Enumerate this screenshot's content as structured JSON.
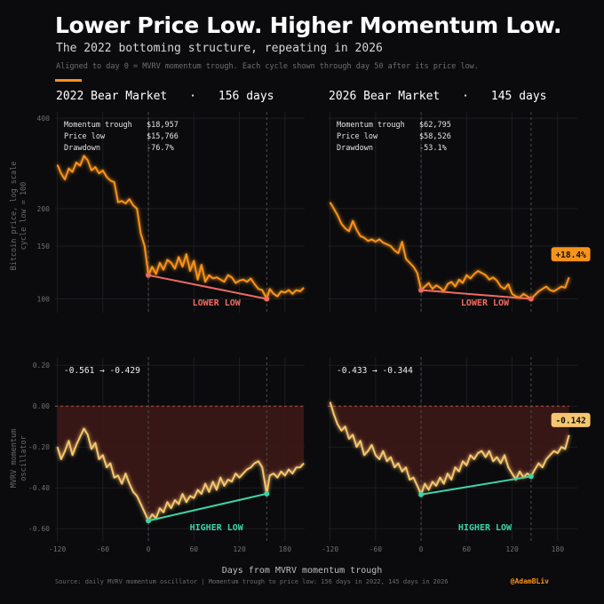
{
  "header": {
    "title": "Lower Price Low. Higher Momentum Low.",
    "subtitle": "The 2022 bottoming structure, repeating in 2026",
    "note": "Aligned to day 0 = MVRV momentum trough. Each cycle shown through day 50 after its price low."
  },
  "axes": {
    "price_ylabel": "Bitcoin price, log scale\ncycle low = 100",
    "osc_ylabel": "MVRV momentum\noscillator",
    "xlabel": "Days from MVRV momentum trough"
  },
  "footer": {
    "source": "Source: daily MVRV momentum oscillator  |  Momentum trough to price low: 156 days in 2022, 145 days in 2026",
    "handle": "@AdamBLiv"
  },
  "colors": {
    "price_line": "#f7931a",
    "osc_line": "#f6c66e",
    "lower_low": "#ef6b61",
    "higher_low": "#3fd2a4",
    "negative_fill": "#3a1816",
    "grid": "#1d1d22"
  },
  "chart_data": [
    {
      "type": "line",
      "panel": "2022 price",
      "title_left": "2022 Bear Market",
      "title_sep": "·",
      "title_right": "156 days",
      "stats": [
        {
          "label": "Momentum trough",
          "value": "$18,957"
        },
        {
          "label": "Price low",
          "value": "$15,766"
        },
        {
          "label": "Drawdown",
          "value": "-76.7%"
        }
      ],
      "x_ticks": [
        -120,
        -60,
        0,
        60,
        120,
        180
      ],
      "xlim": [
        -123,
        206
      ],
      "y_scale": "log",
      "y_ticks": [
        100,
        150,
        200,
        400
      ],
      "ylim": [
        90,
        420
      ],
      "markers_x": [
        0,
        156
      ],
      "x": [
        -120,
        -115,
        -110,
        -105,
        -100,
        -95,
        -90,
        -85,
        -80,
        -75,
        -70,
        -65,
        -60,
        -55,
        -50,
        -45,
        -40,
        -35,
        -30,
        -25,
        -20,
        -15,
        -10,
        -5,
        0,
        5,
        10,
        15,
        20,
        25,
        30,
        35,
        40,
        45,
        50,
        55,
        60,
        65,
        70,
        75,
        80,
        85,
        90,
        95,
        100,
        105,
        110,
        115,
        120,
        125,
        130,
        135,
        140,
        145,
        150,
        156,
        160,
        165,
        170,
        175,
        180,
        185,
        190,
        195,
        200,
        205
      ],
      "y": [
        280,
        262,
        250,
        272,
        265,
        285,
        278,
        300,
        290,
        268,
        275,
        262,
        268,
        255,
        248,
        245,
        210,
        212,
        208,
        215,
        205,
        200,
        165,
        150,
        120,
        128,
        121,
        132,
        125,
        135,
        132,
        126,
        138,
        128,
        141,
        124,
        134,
        116,
        130,
        114,
        120,
        117,
        118,
        116,
        114,
        120,
        118,
        113,
        115,
        116,
        114,
        117,
        112,
        108,
        107,
        100,
        108,
        104,
        102,
        106,
        105,
        107,
        104,
        107,
        106,
        109
      ],
      "lower_low": {
        "from": [
          0,
          120
        ],
        "to": [
          156,
          100
        ],
        "label": "LOWER LOW"
      }
    },
    {
      "type": "line",
      "panel": "2026 price",
      "title_left": "2026 Bear Market",
      "title_sep": "·",
      "title_right": "145 days",
      "stats": [
        {
          "label": "Momentum trough",
          "value": "$62,795"
        },
        {
          "label": "Price low",
          "value": "$58,526"
        },
        {
          "label": "Drawdown",
          "value": "-53.1%"
        }
      ],
      "x_ticks": [
        -120,
        -60,
        0,
        60,
        120,
        180
      ],
      "xlim": [
        -123,
        206
      ],
      "y_scale": "log",
      "y_ticks": [
        100,
        150,
        200,
        400
      ],
      "ylim": [
        90,
        420
      ],
      "markers_x": [
        0,
        145
      ],
      "x": [
        -120,
        -115,
        -110,
        -105,
        -100,
        -95,
        -90,
        -85,
        -80,
        -75,
        -70,
        -65,
        -60,
        -55,
        -50,
        -45,
        -40,
        -35,
        -30,
        -25,
        -20,
        -15,
        -10,
        -5,
        0,
        5,
        10,
        15,
        20,
        25,
        30,
        35,
        40,
        45,
        50,
        55,
        60,
        65,
        70,
        75,
        80,
        85,
        90,
        95,
        100,
        105,
        110,
        115,
        120,
        125,
        130,
        135,
        140,
        145,
        150,
        155,
        160,
        165,
        170,
        175,
        180,
        185,
        190,
        195
      ],
      "y": [
        210,
        200,
        190,
        178,
        172,
        168,
        182,
        170,
        162,
        160,
        156,
        158,
        155,
        158,
        154,
        152,
        150,
        145,
        142,
        155,
        136,
        132,
        128,
        122,
        107,
        110,
        113,
        108,
        111,
        109,
        106,
        112,
        114,
        110,
        116,
        113,
        120,
        117,
        121,
        124,
        122,
        120,
        116,
        118,
        115,
        110,
        108,
        112,
        104,
        102,
        101,
        104,
        102,
        100,
        103,
        106,
        108,
        110,
        107,
        106,
        108,
        110,
        109,
        118
      ],
      "lower_low": {
        "from": [
          0,
          107
        ],
        "to": [
          145,
          100
        ],
        "label": "LOWER LOW"
      },
      "end_badge": "+18.4%"
    },
    {
      "type": "area",
      "panel": "2022 oscillator",
      "reading_from": "-0.561",
      "reading_arrow": "→",
      "reading_to": "-0.429",
      "x_ticks": [
        -120,
        -60,
        0,
        60,
        120,
        180
      ],
      "x_tick_labels": [
        "-120",
        "-60",
        "0",
        "60",
        "120",
        "180"
      ],
      "xlim": [
        -123,
        206
      ],
      "y_ticks": [
        -0.6,
        -0.4,
        -0.2,
        0.0,
        0.2
      ],
      "y_tick_labels": [
        "-0.60",
        "-0.40",
        "-0.20",
        "0.00",
        "0.20"
      ],
      "ylim": [
        -0.66,
        0.24
      ],
      "markers_x": [
        0,
        156
      ],
      "x": [
        -120,
        -115,
        -110,
        -105,
        -100,
        -95,
        -90,
        -85,
        -80,
        -75,
        -70,
        -65,
        -60,
        -55,
        -50,
        -45,
        -40,
        -35,
        -30,
        -25,
        -20,
        -15,
        -10,
        -5,
        0,
        5,
        10,
        15,
        20,
        25,
        30,
        35,
        40,
        45,
        50,
        55,
        60,
        65,
        70,
        75,
        80,
        85,
        90,
        95,
        100,
        105,
        110,
        115,
        120,
        125,
        130,
        135,
        140,
        145,
        150,
        156,
        160,
        165,
        170,
        175,
        180,
        185,
        190,
        195,
        200,
        205
      ],
      "y": [
        -0.2,
        -0.26,
        -0.22,
        -0.17,
        -0.24,
        -0.19,
        -0.15,
        -0.11,
        -0.14,
        -0.21,
        -0.18,
        -0.26,
        -0.24,
        -0.3,
        -0.28,
        -0.35,
        -0.34,
        -0.38,
        -0.33,
        -0.38,
        -0.42,
        -0.44,
        -0.48,
        -0.52,
        -0.561,
        -0.53,
        -0.55,
        -0.5,
        -0.52,
        -0.47,
        -0.5,
        -0.46,
        -0.48,
        -0.43,
        -0.47,
        -0.44,
        -0.45,
        -0.41,
        -0.43,
        -0.38,
        -0.42,
        -0.37,
        -0.41,
        -0.35,
        -0.39,
        -0.36,
        -0.37,
        -0.33,
        -0.35,
        -0.33,
        -0.31,
        -0.3,
        -0.28,
        -0.27,
        -0.3,
        -0.429,
        -0.34,
        -0.33,
        -0.35,
        -0.32,
        -0.34,
        -0.31,
        -0.33,
        -0.3,
        -0.3,
        -0.28
      ],
      "higher_low": {
        "from": [
          0,
          -0.561
        ],
        "to": [
          156,
          -0.429
        ],
        "label": "HIGHER LOW"
      }
    },
    {
      "type": "area",
      "panel": "2026 oscillator",
      "reading_from": "-0.433",
      "reading_arrow": "→",
      "reading_to": "-0.344",
      "x_ticks": [
        -120,
        -60,
        0,
        60,
        120,
        180
      ],
      "x_tick_labels": [
        "-120",
        "-60",
        "0",
        "60",
        "120",
        "180"
      ],
      "xlim": [
        -123,
        206
      ],
      "y_ticks": [
        -0.6,
        -0.4,
        -0.2,
        0.0,
        0.2
      ],
      "ylim": [
        -0.66,
        0.24
      ],
      "markers_x": [
        0,
        145
      ],
      "x": [
        -120,
        -115,
        -110,
        -105,
        -100,
        -95,
        -90,
        -85,
        -80,
        -75,
        -70,
        -65,
        -60,
        -55,
        -50,
        -45,
        -40,
        -35,
        -30,
        -25,
        -20,
        -15,
        -10,
        -5,
        0,
        5,
        10,
        15,
        20,
        25,
        30,
        35,
        40,
        45,
        50,
        55,
        60,
        65,
        70,
        75,
        80,
        85,
        90,
        95,
        100,
        105,
        110,
        115,
        120,
        125,
        130,
        135,
        140,
        145,
        150,
        155,
        160,
        165,
        170,
        175,
        180,
        185,
        190,
        195
      ],
      "y": [
        0.02,
        -0.04,
        -0.09,
        -0.12,
        -0.1,
        -0.16,
        -0.14,
        -0.2,
        -0.17,
        -0.24,
        -0.22,
        -0.19,
        -0.24,
        -0.26,
        -0.22,
        -0.27,
        -0.25,
        -0.3,
        -0.28,
        -0.32,
        -0.3,
        -0.36,
        -0.35,
        -0.39,
        -0.433,
        -0.38,
        -0.41,
        -0.37,
        -0.39,
        -0.35,
        -0.38,
        -0.33,
        -0.36,
        -0.3,
        -0.32,
        -0.27,
        -0.29,
        -0.24,
        -0.26,
        -0.23,
        -0.22,
        -0.25,
        -0.22,
        -0.27,
        -0.25,
        -0.28,
        -0.24,
        -0.3,
        -0.33,
        -0.36,
        -0.32,
        -0.35,
        -0.33,
        -0.344,
        -0.31,
        -0.28,
        -0.3,
        -0.26,
        -0.24,
        -0.22,
        -0.23,
        -0.2,
        -0.21,
        -0.142
      ],
      "higher_low": {
        "from": [
          0,
          -0.433
        ],
        "to": [
          145,
          -0.344
        ],
        "label": "HIGHER LOW"
      },
      "end_badge": "-0.142"
    }
  ]
}
